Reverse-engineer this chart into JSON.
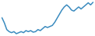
{
  "values": [
    55,
    45,
    32,
    28,
    26,
    28,
    24,
    26,
    28,
    26,
    30,
    28,
    30,
    27,
    28,
    32,
    30,
    34,
    38,
    36,
    38,
    40,
    46,
    54,
    62,
    70,
    76,
    80,
    76,
    70,
    68,
    72,
    76,
    72,
    76,
    80,
    84,
    80,
    85
  ],
  "line_color": "#3a8bbf",
  "background_color": "#ffffff",
  "linewidth": 1.1
}
